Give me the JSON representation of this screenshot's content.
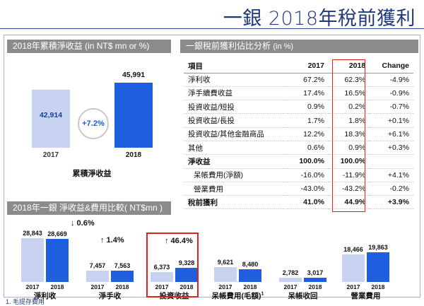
{
  "title": "一銀 2018年稅前獲利",
  "cumulative": {
    "header": "2018年累積淨收益 (in NT$ mn or %)",
    "bars": [
      {
        "year": "2017",
        "value": "42,914",
        "raw": 42914
      },
      {
        "year": "2018",
        "value": "45,991",
        "raw": 45991
      }
    ],
    "growth": "+7.2%",
    "label": "累積淨收益"
  },
  "analysis": {
    "header": "一銀稅前獲利佔比分析",
    "unit": "(in %)",
    "columns": [
      "項目",
      "2017",
      "2018",
      "Change"
    ],
    "rows": [
      {
        "item": "淨利收",
        "y2017": "67.2%",
        "y2018": "62.3%",
        "change": "-4.9%",
        "bold": false,
        "indent": false
      },
      {
        "item": "淨手續費收益",
        "y2017": "17.4%",
        "y2018": "16.5%",
        "change": "-0.9%",
        "bold": false,
        "indent": false
      },
      {
        "item": "投資收益/短投",
        "y2017": "0.9%",
        "y2018": "0.2%",
        "change": "-0.7%",
        "bold": false,
        "indent": false
      },
      {
        "item": "投資收益/長投",
        "y2017": "1.7%",
        "y2018": "1.8%",
        "change": "+0.1%",
        "bold": false,
        "indent": false
      },
      {
        "item": "投資收益/其他金融商品",
        "y2017": "12.2%",
        "y2018": "18.3%",
        "change": "+6.1%",
        "bold": false,
        "indent": false
      },
      {
        "item": "其他",
        "y2017": "0.6%",
        "y2018": "0.9%",
        "change": "+0.3%",
        "bold": false,
        "indent": false
      },
      {
        "item": "淨收益",
        "y2017": "100.0%",
        "y2018": "100.0%",
        "change": "",
        "bold": true,
        "indent": false
      },
      {
        "item": "呆帳費用(淨額)",
        "y2017": "-16.0%",
        "y2018": "-11.9%",
        "change": "+4.1%",
        "bold": false,
        "indent": true
      },
      {
        "item": "營業費用",
        "y2017": "-43.0%",
        "y2018": "-43.2%",
        "change": "-0.2%",
        "bold": false,
        "indent": true
      },
      {
        "item": "稅前獲利",
        "y2017": "41.0%",
        "y2018": "44.9%",
        "change": "+3.9%",
        "bold": true,
        "indent": false
      }
    ]
  },
  "comparison": {
    "header": "2018年一銀 淨收益&費用比較( NT$mn )",
    "groups": [
      {
        "name": "淨利收",
        "v2017": "28,843",
        "v2018": "28,669",
        "raw2017": 28843,
        "raw2018": 28669,
        "change": "↓ 0.6%"
      },
      {
        "name": "淨手收",
        "v2017": "7,457",
        "v2018": "7,563",
        "raw2017": 7457,
        "raw2018": 7563,
        "change": "↑ 1.4%"
      },
      {
        "name": "投資收益",
        "v2017": "6,373",
        "v2018": "9,328",
        "raw2017": 6373,
        "raw2018": 9328,
        "change": "↑ 46.4%"
      },
      {
        "name": "呆帳費用(毛額)",
        "sup": "1",
        "v2017": "9,621",
        "v2018": "8,480",
        "raw2017": 9621,
        "raw2018": 8480,
        "change": ""
      },
      {
        "name": "呆帳收回",
        "v2017": "2,782",
        "v2018": "3,017",
        "raw2017": 2782,
        "raw2018": 3017,
        "change": ""
      },
      {
        "name": "營業費用",
        "v2017": "18,466",
        "v2018": "19,863",
        "raw2017": 18466,
        "raw2018": 19863,
        "change": ""
      }
    ],
    "years": [
      "2017",
      "2018"
    ],
    "footnote": "1. 毛提存費用"
  },
  "colors": {
    "bar2017": "#c7d3f1",
    "bar2018": "#1e5fe0",
    "highlight": "#e0231a",
    "header": "#8b8b8b"
  }
}
